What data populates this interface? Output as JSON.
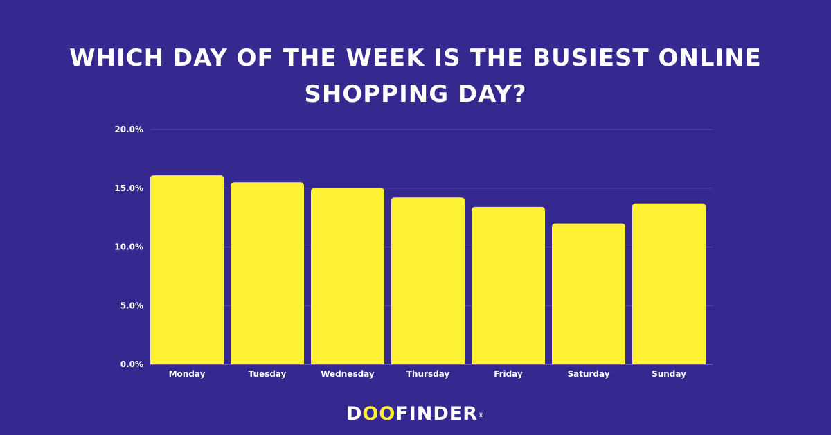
{
  "title": {
    "line1": "WHICH DAY OF THE WEEK IS THE BUSIEST ONLINE",
    "line2": "SHOPPING DAY?"
  },
  "brand": {
    "prefix": "D",
    "oo": "OO",
    "suffix": "FINDER",
    "mark": "®"
  },
  "colors": {
    "background": "#35288f",
    "bar": "#fff133",
    "grid": "#5a4fb0",
    "text": "#ffffff"
  },
  "chart_data": {
    "type": "bar",
    "categories": [
      "Monday",
      "Tuesday",
      "Wednesday",
      "Thursday",
      "Friday",
      "Saturday",
      "Sunday"
    ],
    "values": [
      16.1,
      15.5,
      15.0,
      14.2,
      13.4,
      12.0,
      13.7
    ],
    "ylim": [
      0,
      20
    ],
    "yticks": [
      "0.0%",
      "5.0%",
      "10.0%",
      "15.0%",
      "20.0%"
    ],
    "grid": true,
    "legend": "none"
  }
}
